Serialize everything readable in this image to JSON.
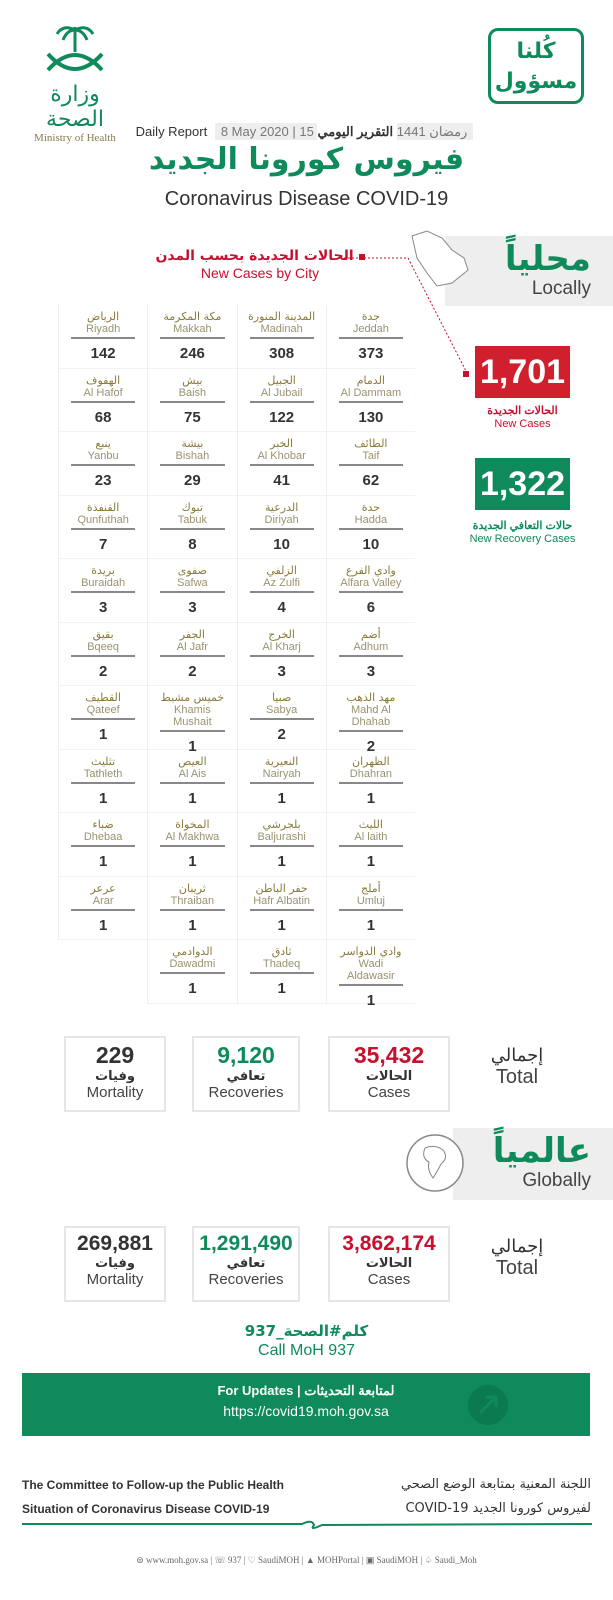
{
  "header": {
    "moh_logo": {
      "arabic": "وزارة الصحة",
      "english": "Ministry of Health"
    },
    "campaign_logo": {
      "line1": "كُلنا",
      "line2": "مسؤول"
    },
    "daily_report_ar": "التقرير اليومي",
    "hijri_date": "15 رمضان 1441",
    "gregorian_date": "8 May 2020",
    "daily_report_en": "Daily Report",
    "title_ar": "فيروس كورونا الجديد",
    "title_en": "Coronavirus Disease COVID-19"
  },
  "cities_section": {
    "title_ar": "الحالات الجديدة بحسب المدن",
    "title_en": "New Cases by City"
  },
  "cities": [
    {
      "ar": "جدة",
      "en": "Jeddah",
      "n": "373"
    },
    {
      "ar": "المدينة المنورة",
      "en": "Madinah",
      "n": "308"
    },
    {
      "ar": "مكة المكرمة",
      "en": "Makkah",
      "n": "246"
    },
    {
      "ar": "الرياض",
      "en": "Riyadh",
      "n": "142"
    },
    {
      "ar": "الدمام",
      "en": "Al Dammam",
      "n": "130"
    },
    {
      "ar": "الجبيل",
      "en": "Al Jubail",
      "n": "122"
    },
    {
      "ar": "بيش",
      "en": "Baish",
      "n": "75"
    },
    {
      "ar": "الهفوف",
      "en": "Al Hafof",
      "n": "68"
    },
    {
      "ar": "الطائف",
      "en": "Taif",
      "n": "62"
    },
    {
      "ar": "الخبر",
      "en": "Al Khobar",
      "n": "41"
    },
    {
      "ar": "بيشة",
      "en": "Bishah",
      "n": "29"
    },
    {
      "ar": "ينبع",
      "en": "Yanbu",
      "n": "23"
    },
    {
      "ar": "حدة",
      "en": "Hadda",
      "n": "10"
    },
    {
      "ar": "الدرعية",
      "en": "Diriyah",
      "n": "10"
    },
    {
      "ar": "تبوك",
      "en": "Tabuk",
      "n": "8"
    },
    {
      "ar": "القنفذة",
      "en": "Qunfuthah",
      "n": "7"
    },
    {
      "ar": "وادي الفرع",
      "en": "Alfara Valley",
      "n": "6"
    },
    {
      "ar": "الزلفي",
      "en": "Az Zulfi",
      "n": "4"
    },
    {
      "ar": "صفوى",
      "en": "Safwa",
      "n": "3"
    },
    {
      "ar": "بريدة",
      "en": "Buraidah",
      "n": "3"
    },
    {
      "ar": "أضم",
      "en": "Adhum",
      "n": "3"
    },
    {
      "ar": "الخرج",
      "en": "Al Kharj",
      "n": "3"
    },
    {
      "ar": "الجفر",
      "en": "Al Jafr",
      "n": "2"
    },
    {
      "ar": "بقيق",
      "en": "Bqeeq",
      "n": "2"
    },
    {
      "ar": "مهد الذهب",
      "en": "Mahd Al Dhahab",
      "n": "2"
    },
    {
      "ar": "صبيا",
      "en": "Sabya",
      "n": "2"
    },
    {
      "ar": "خميس مشيط",
      "en": "Khamis Mushait",
      "n": "1"
    },
    {
      "ar": "القطيف",
      "en": "Qateef",
      "n": "1"
    },
    {
      "ar": "الظهران",
      "en": "Dhahran",
      "n": "1"
    },
    {
      "ar": "النعيرية",
      "en": "Nairyah",
      "n": "1"
    },
    {
      "ar": "العيص",
      "en": "Al Ais",
      "n": "1"
    },
    {
      "ar": "تثليث",
      "en": "Tathleth",
      "n": "1"
    },
    {
      "ar": "الليث",
      "en": "Al laith",
      "n": "1"
    },
    {
      "ar": "بلجرشي",
      "en": "Baljurashi",
      "n": "1"
    },
    {
      "ar": "المخواة",
      "en": "Al Makhwa",
      "n": "1"
    },
    {
      "ar": "ضباء",
      "en": "Dhebaa",
      "n": "1"
    },
    {
      "ar": "أملج",
      "en": "Umluj",
      "n": "1"
    },
    {
      "ar": "حفر الباطن",
      "en": "Hafr Albatin",
      "n": "1"
    },
    {
      "ar": "ثريبان",
      "en": "Thraiban",
      "n": "1"
    },
    {
      "ar": "عرعر",
      "en": "Arar",
      "n": "1"
    },
    {
      "ar": "وادي الدواسر",
      "en": "Wadi Aldawasir",
      "n": "1"
    },
    {
      "ar": "ثادق",
      "en": "Thadeq",
      "n": "1"
    },
    {
      "ar": "الدوادمي",
      "en": "Dawadmi",
      "n": "1"
    }
  ],
  "locally": {
    "title_ar": "محلياً",
    "title_en": "Locally",
    "new_cases": {
      "value": "1,701",
      "label_ar": "الحالات الجديدة",
      "label_en": "New Cases",
      "color": "#d0202e"
    },
    "new_recoveries": {
      "value": "1,322",
      "label_ar": "حالات التعافي الجديدة",
      "label_en": "New Recovery Cases",
      "color": "#0f8a5a"
    },
    "total": {
      "label_ar": "إجمالي",
      "label_en": "Total",
      "cases": {
        "value": "35,432",
        "label_ar": "الحالات",
        "label_en": "Cases"
      },
      "recoveries": {
        "value": "9,120",
        "label_ar": "تعافي",
        "label_en": "Recoveries"
      },
      "mortality": {
        "value": "229",
        "label_ar": "وفيات",
        "label_en": "Mortality"
      }
    }
  },
  "globally": {
    "title_ar": "عالمياً",
    "title_en": "Globally",
    "total": {
      "label_ar": "إجمالي",
      "label_en": "Total",
      "cases": {
        "value": "3,862,174",
        "label_ar": "الحالات",
        "label_en": "Cases"
      },
      "recoveries": {
        "value": "1,291,490",
        "label_ar": "تعافي",
        "label_en": "Recoveries"
      },
      "mortality": {
        "value": "269,881",
        "label_ar": "وفيات",
        "label_en": "Mortality"
      }
    }
  },
  "contact": {
    "hashtag": "كلم#الصحة_937",
    "call_en": "Call MoH 937"
  },
  "banner": {
    "title_en": "For Updates",
    "title_ar": "لمتابعة التحديثات",
    "url": "https://covid19.moh.gov.sa"
  },
  "committee": {
    "en_line1": "The Committee to Follow-up the Public Health",
    "en_line2": "Situation of Coronavirus Disease COVID-19",
    "ar_line1": "اللجنة المعنية بمتابعة الوضع الصحي",
    "ar_line2": "لفيروس كورونا الجديد COVID-19"
  },
  "footer": [
    "www.moh.gov.sa",
    "937",
    "SaudiMOH",
    "MOHPortal",
    "SaudiMOH",
    "Saudi_Moh"
  ]
}
